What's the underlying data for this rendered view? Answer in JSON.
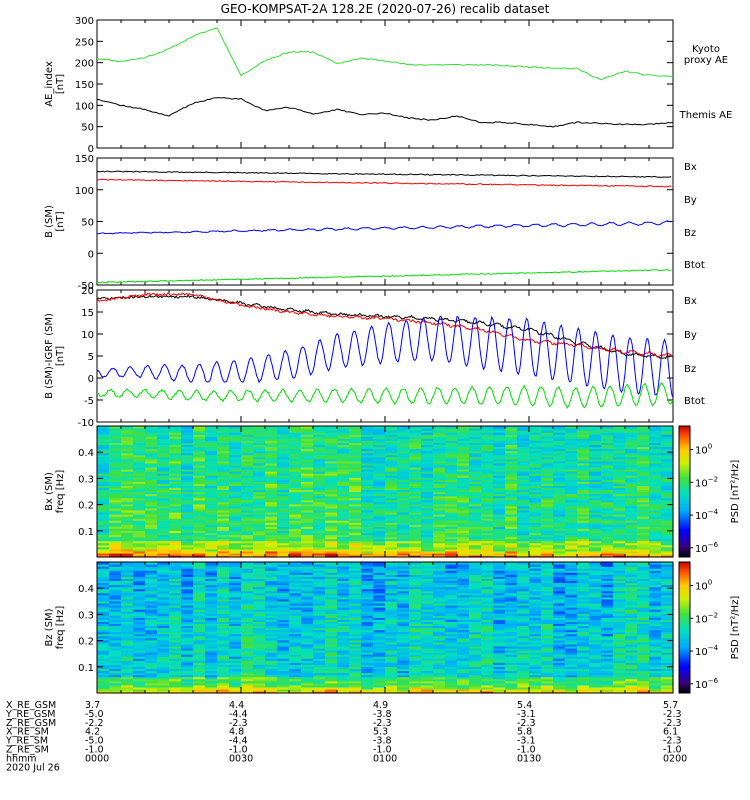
{
  "title": "GEO-KOMPSAT-2A 128.2E (2020-07-26) recalib dataset",
  "colors": {
    "black": "#000000",
    "red": "#ff0000",
    "green": "#00dd00",
    "blue": "#0000ff",
    "kyoto": "#33dd33"
  },
  "chart_data": [
    {
      "type": "line",
      "panel": "ae",
      "ylabel": "AE_index\n[nT]",
      "ylim": [
        0,
        300
      ],
      "yticks": [
        0,
        50,
        100,
        150,
        200,
        250,
        300
      ],
      "x_minutes": [
        0,
        5,
        10,
        15,
        20,
        25,
        30,
        35,
        40,
        45,
        50,
        55,
        60,
        65,
        70,
        75,
        80,
        85,
        90,
        95,
        100,
        105,
        110,
        115,
        120
      ],
      "series": [
        {
          "name": "Kyoto\nproxy AE",
          "color": "#33dd33",
          "values": [
            210,
            203,
            212,
            232,
            262,
            282,
            170,
            205,
            225,
            225,
            198,
            210,
            205,
            195,
            195,
            195,
            195,
            193,
            190,
            188,
            186,
            160,
            180,
            170,
            168
          ]
        },
        {
          "name": "Themis AE",
          "color": "#000000",
          "values": [
            115,
            100,
            90,
            75,
            105,
            118,
            115,
            88,
            95,
            80,
            90,
            78,
            82,
            70,
            65,
            75,
            60,
            60,
            55,
            50,
            60,
            58,
            55,
            55,
            60
          ]
        }
      ]
    },
    {
      "type": "line",
      "panel": "b",
      "ylabel": "B (SM)\n[nT]",
      "ylim": [
        -50,
        150
      ],
      "yticks": [
        -50,
        0,
        50,
        100,
        150
      ],
      "x_minutes": [
        0,
        120
      ],
      "legend": [
        "Bx",
        "By",
        "Bz",
        "Btot"
      ],
      "series": [
        {
          "name": "Btot",
          "color": "#000000",
          "values": [
            129,
            120
          ]
        },
        {
          "name": "Bz",
          "color": "#ff0000",
          "values": [
            116,
            105
          ]
        },
        {
          "name": "Bx",
          "color": "#0000ff",
          "values": [
            31,
            48
          ]
        },
        {
          "name": "By",
          "color": "#00dd00",
          "values": [
            -46,
            -26
          ]
        }
      ]
    },
    {
      "type": "line",
      "panel": "db",
      "ylabel": "B (SM)-IGRF (SM)\n[nT]",
      "ylim": [
        -10,
        20
      ],
      "yticks": [
        -10,
        -5,
        0,
        5,
        10,
        15,
        20
      ],
      "legend": [
        "Bx",
        "By",
        "Bz",
        "Btot"
      ],
      "x_minutes": [
        0,
        10,
        20,
        30,
        40,
        50,
        60,
        70,
        80,
        90,
        100,
        110,
        120
      ],
      "series": [
        {
          "name": "Btot",
          "color": "#000000",
          "values": [
            18,
            18.5,
            18.5,
            17,
            15.5,
            14.5,
            14,
            13.5,
            12.5,
            11,
            8,
            5.5,
            4.5
          ]
        },
        {
          "name": "Bz",
          "color": "#ff0000",
          "values": [
            17.5,
            19,
            19,
            16.5,
            15,
            14,
            13.5,
            12.5,
            11,
            8.5,
            7.5,
            6,
            5
          ]
        },
        {
          "name": "Bx",
          "color": "#0000ff",
          "values": [
            1,
            1.5,
            1,
            1.5,
            3,
            6,
            8,
            9,
            8,
            7,
            5,
            3,
            2
          ]
        },
        {
          "name": "By",
          "color": "#00dd00",
          "values": [
            -3.5,
            -3.5,
            -4,
            -4,
            -4,
            -4,
            -4,
            -4,
            -4,
            -4,
            -4.5,
            -4,
            -3.5
          ]
        }
      ]
    },
    {
      "type": "heatmap",
      "panel": "spec_bx",
      "ylabel": "Bx (SM)\nfreq [Hz]",
      "ylim": [
        0,
        0.5
      ],
      "yticks": [
        0.1,
        0.2,
        0.3,
        0.4
      ],
      "colorbar": {
        "label": "PSD [nT^2/Hz]",
        "ticks": [
          "10^0",
          "10^-2",
          "10^-4",
          "10^-6"
        ]
      }
    },
    {
      "type": "heatmap",
      "panel": "spec_bz",
      "ylabel": "Bz (SM)\nfreq [Hz]",
      "ylim": [
        0,
        0.5
      ],
      "yticks": [
        0.1,
        0.2,
        0.3,
        0.4
      ],
      "colorbar": {
        "label": "PSD [nT^2/Hz]",
        "ticks": [
          "10^0",
          "10^-2",
          "10^-4",
          "10^-6"
        ]
      }
    }
  ],
  "time_axis": {
    "row_labels": [
      "X_RE_GSM",
      "Y_RE_GSM",
      "Z_RE_GSM",
      "X_RE_SM",
      "Y_RE_SM",
      "Z_RE_SM",
      "hhmm",
      "2020 Jul 26"
    ],
    "columns": [
      [
        "3.7",
        "-5.0",
        "-2.2",
        "4.2",
        "-5.0",
        "-1.0",
        "0000"
      ],
      [
        "4.4",
        "-4.4",
        "-2.3",
        "4.8",
        "-4.4",
        "-1.0",
        "0030"
      ],
      [
        "4.9",
        "-3.8",
        "-2.3",
        "5.3",
        "-3.8",
        "-1.0",
        "0100"
      ],
      [
        "5.4",
        "-3.1",
        "-2.3",
        "5.8",
        "-3.1",
        "-1.0",
        "0130"
      ],
      [
        "5.7",
        "-2.3",
        "-2.3",
        "6.1",
        "-2.3",
        "-1.0",
        "0200"
      ]
    ]
  }
}
